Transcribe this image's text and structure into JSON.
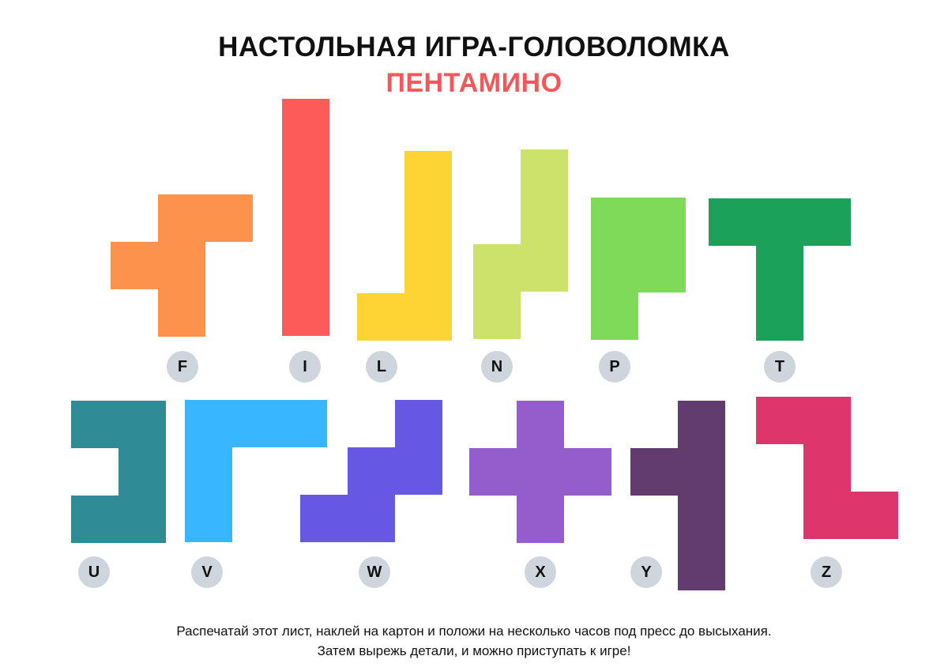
{
  "header": {
    "title": "НАСТОЛЬНАЯ ИГРА-ГОЛОВОЛОМКА",
    "subtitle": "ПЕНТАМИНО",
    "subtitle_color": "#f2585a"
  },
  "pieces": [
    {
      "letter": "F",
      "color": "#fd924c"
    },
    {
      "letter": "I",
      "color": "#fd5a5a"
    },
    {
      "letter": "L",
      "color": "#fed334"
    },
    {
      "letter": "N",
      "color": "#cde26a"
    },
    {
      "letter": "P",
      "color": "#7fda5a"
    },
    {
      "letter": "T",
      "color": "#1ba158"
    },
    {
      "letter": "U",
      "color": "#2f8c96"
    },
    {
      "letter": "V",
      "color": "#38b6ff"
    },
    {
      "letter": "W",
      "color": "#6558e2"
    },
    {
      "letter": "X",
      "color": "#955ccb"
    },
    {
      "letter": "Y",
      "color": "#623b6f"
    },
    {
      "letter": "Z",
      "color": "#df356d"
    }
  ],
  "footer": {
    "line1": "Распечатай этот лист, наклей на картон и положи на несколько часов под пресс до высыхания.",
    "line2": "Затем вырежь детали, и можно приступать к игре!"
  }
}
